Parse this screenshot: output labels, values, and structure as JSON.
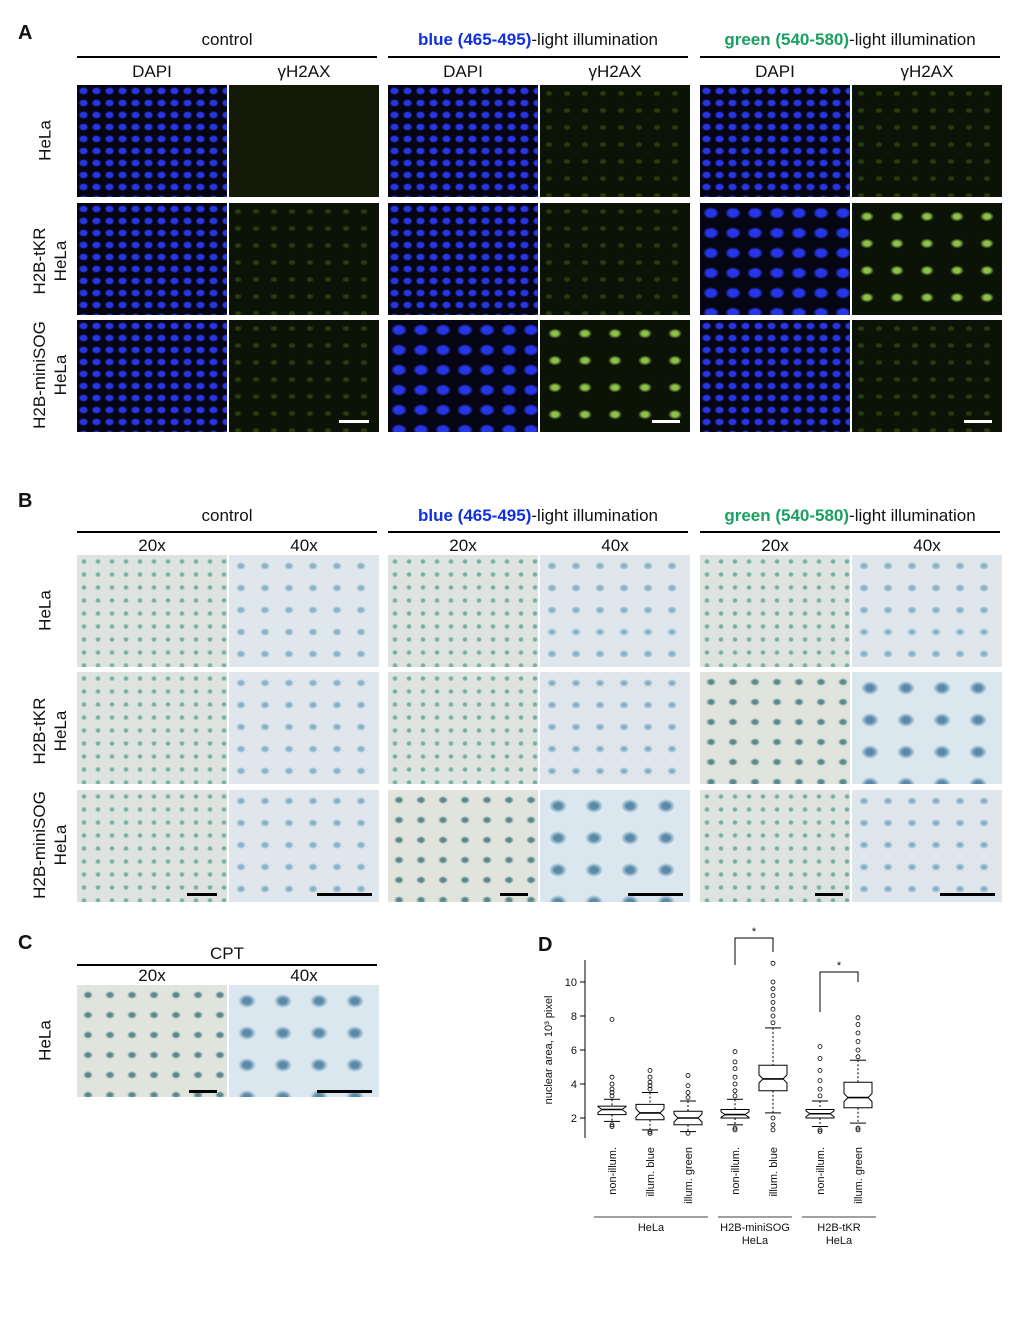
{
  "panels": {
    "A": "A",
    "B": "B",
    "C": "C",
    "D": "D"
  },
  "conditions": {
    "control": "control",
    "blue_word": "blue (465-495)",
    "green_word": "green (540-580)",
    "suffix": "-light illumination"
  },
  "colors": {
    "blue": "#1030e0",
    "green": "#1aa060"
  },
  "panelA_subheaders": [
    "DAPI",
    "γH2AX",
    "DAPI",
    "γH2AX",
    "DAPI",
    "γH2AX"
  ],
  "panelB_subheaders": [
    "20x",
    "40x",
    "20x",
    "40x",
    "20x",
    "40x"
  ],
  "row_labels": {
    "r1": "HeLa",
    "r2_line1": "H2B-tKR",
    "r2_line2": "HeLa",
    "r3_line1": "H2B-miniSOG",
    "r3_line2": "HeLa"
  },
  "panelC": {
    "header": "CPT",
    "sub1": "20x",
    "sub2": "40x",
    "row": "HeLa"
  },
  "chart_data": {
    "type": "box",
    "ylabel": "nuclear area, 10³ pixel",
    "ylim": [
      1,
      11
    ],
    "yticks": [
      2,
      4,
      6,
      8,
      10
    ],
    "categories": [
      "non-illum.",
      "illum. blue",
      "illum. green",
      "non-illum.",
      "illum. blue",
      "non-illum.",
      "illum. green"
    ],
    "groups": [
      {
        "label": "HeLa",
        "members": [
          0,
          1,
          2
        ]
      },
      {
        "label_line1": "H2B-miniSOG",
        "label_line2": "HeLa",
        "members": [
          3,
          4
        ]
      },
      {
        "label_line1": "H2B-tKR",
        "label_line2": "HeLa",
        "members": [
          5,
          6
        ]
      }
    ],
    "boxes": [
      {
        "q1": 2.2,
        "median": 2.5,
        "q3": 2.7,
        "whisker_low": 1.8,
        "whisker_high": 3.1,
        "outliers_high": [
          3.3,
          3.5,
          3.7,
          4.0,
          4.4,
          7.8
        ],
        "outliers_low": [
          1.6,
          1.5
        ]
      },
      {
        "q1": 1.9,
        "median": 2.3,
        "q3": 2.8,
        "whisker_low": 1.3,
        "whisker_high": 3.5,
        "outliers_high": [
          3.7,
          3.9,
          4.1,
          4.4,
          4.8
        ],
        "outliers_low": [
          1.2,
          1.1
        ]
      },
      {
        "q1": 1.6,
        "median": 2.0,
        "q3": 2.4,
        "whisker_low": 1.2,
        "whisker_high": 3.0,
        "outliers_high": [
          3.2,
          3.5,
          3.9,
          4.5
        ],
        "outliers_low": [
          1.1
        ]
      },
      {
        "q1": 2.0,
        "median": 2.2,
        "q3": 2.5,
        "whisker_low": 1.6,
        "whisker_high": 3.1,
        "outliers_high": [
          3.3,
          3.6,
          4.0,
          4.4,
          4.9,
          5.3,
          5.9
        ],
        "outliers_low": [
          1.4,
          1.3
        ]
      },
      {
        "q1": 3.6,
        "median": 4.3,
        "q3": 5.1,
        "whisker_low": 2.3,
        "whisker_high": 7.3,
        "outliers_high": [
          7.6,
          8.0,
          8.4,
          8.8,
          9.2,
          9.6,
          10.0,
          11.1
        ],
        "outliers_low": [
          2.0,
          1.6,
          1.3
        ]
      },
      {
        "q1": 2.0,
        "median": 2.25,
        "q3": 2.5,
        "whisker_low": 1.5,
        "whisker_high": 3.0,
        "outliers_high": [
          3.3,
          3.7,
          4.2,
          4.8,
          5.5,
          6.2
        ],
        "outliers_low": [
          1.3,
          1.2
        ]
      },
      {
        "q1": 2.6,
        "median": 3.2,
        "q3": 4.1,
        "whisker_low": 1.7,
        "whisker_high": 5.4,
        "outliers_high": [
          5.6,
          6.0,
          6.5,
          7.0,
          7.5,
          7.9
        ],
        "outliers_low": [
          1.4,
          1.3
        ]
      }
    ],
    "significance": [
      {
        "from": 3,
        "to": 4,
        "label": "*"
      },
      {
        "from": 5,
        "to": 6,
        "label": "*"
      }
    ]
  }
}
